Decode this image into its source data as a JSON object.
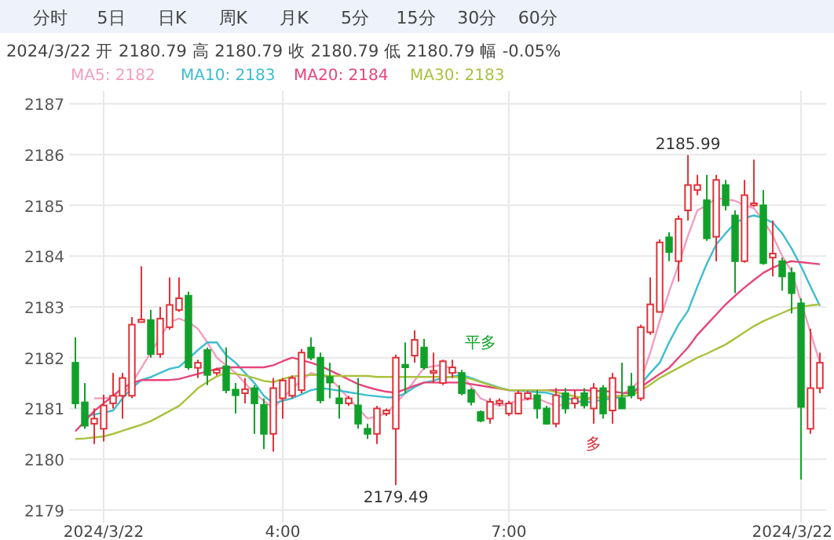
{
  "chart_data": {
    "type": "candlestick",
    "subtitle": "2024/3/22  开 2180.79  高 2180.79  收 2180.79  低 2180.79  幅 -0.05%",
    "annotations": [
      "分时",
      "5日",
      "日K",
      "周K",
      "月K",
      "5分",
      "15分",
      "30分",
      "60分",
      "平多",
      "多",
      {
        "text": "2185.99",
        "y": 2185.99
      },
      {
        "text": "2179.49",
        "y": 2179.49
      }
    ],
    "categories": [
      null,
      null,
      null,
      "2024/3/22",
      null,
      null,
      null,
      null,
      null,
      null,
      null,
      null,
      null,
      null,
      null,
      null,
      null,
      null,
      null,
      null,
      null,
      null,
      "4:00",
      null,
      null,
      null,
      null,
      null,
      null,
      null,
      null,
      null,
      null,
      null,
      null,
      null,
      null,
      null,
      null,
      null,
      null,
      null,
      null,
      null,
      null,
      null,
      "7:00",
      null,
      null,
      null,
      null,
      null,
      null,
      null,
      null,
      null,
      null,
      null,
      null,
      null,
      null,
      null,
      null,
      null,
      null,
      null,
      null,
      null,
      null,
      null,
      null,
      null,
      null,
      null,
      null,
      null,
      null,
      "2024/3/22",
      null,
      null
    ],
    "ohlc": [
      [
        2181.9,
        2182.4,
        2181.0,
        2181.1
      ],
      [
        2181.12,
        2181.5,
        2180.6,
        2180.66
      ],
      [
        2180.7,
        2181.0,
        2180.3,
        2180.8
      ],
      [
        2180.6,
        2181.27,
        2180.35,
        2181.06
      ],
      [
        2181.1,
        2181.7,
        2181.0,
        2181.25
      ],
      [
        2181.25,
        2181.7,
        2180.8,
        2181.6
      ],
      [
        2181.25,
        2182.8,
        2181.2,
        2182.65
      ],
      [
        2182.7,
        2183.8,
        2182.7,
        2182.75
      ],
      [
        2182.74,
        2182.94,
        2182.0,
        2182.07
      ],
      [
        2182.07,
        2183.0,
        2182.0,
        2182.77
      ],
      [
        2182.6,
        2183.58,
        2182.55,
        2183.04
      ],
      [
        2182.94,
        2183.58,
        2182.9,
        2183.17
      ],
      [
        2183.22,
        2183.3,
        2181.76,
        2181.81
      ],
      [
        2181.8,
        2181.96,
        2181.6,
        2181.9
      ],
      [
        2182.15,
        2182.2,
        2181.46,
        2181.66
      ],
      [
        2181.7,
        2181.8,
        2181.65,
        2181.76
      ],
      [
        2181.83,
        2182.2,
        2181.3,
        2181.36
      ],
      [
        2181.37,
        2181.5,
        2180.9,
        2181.26
      ],
      [
        2181.3,
        2181.6,
        2181.1,
        2181.38
      ],
      [
        2181.4,
        2181.46,
        2180.5,
        2181.1
      ],
      [
        2181.07,
        2181.2,
        2180.2,
        2180.5
      ],
      [
        2180.5,
        2181.6,
        2180.15,
        2181.4
      ],
      [
        2181.2,
        2181.6,
        2180.8,
        2181.55
      ],
      [
        2181.25,
        2181.65,
        2181.2,
        2181.6
      ],
      [
        2181.36,
        2182.17,
        2181.3,
        2182.1
      ],
      [
        2182.2,
        2182.4,
        2181.95,
        2182.0
      ],
      [
        2182.0,
        2182.1,
        2181.1,
        2181.16
      ],
      [
        2181.62,
        2181.9,
        2181.2,
        2181.51
      ],
      [
        2181.2,
        2181.46,
        2180.8,
        2181.1
      ],
      [
        2181.1,
        2181.25,
        2181.05,
        2181.2
      ],
      [
        2181.06,
        2181.6,
        2180.6,
        2180.7
      ],
      [
        2180.6,
        2180.7,
        2180.4,
        2180.5
      ],
      [
        2180.5,
        2181.05,
        2180.3,
        2181.0
      ],
      [
        2180.9,
        2181.0,
        2180.85,
        2180.96
      ],
      [
        2180.6,
        2182.06,
        2179.49,
        2182.0
      ],
      [
        2181.86,
        2182.3,
        2181.3,
        2181.81
      ],
      [
        2182.04,
        2182.54,
        2181.9,
        2182.35
      ],
      [
        2182.2,
        2182.37,
        2181.76,
        2181.81
      ],
      [
        2181.7,
        2182.1,
        2181.5,
        2181.74
      ],
      [
        2181.5,
        2181.96,
        2181.46,
        2181.93
      ],
      [
        2181.7,
        2181.96,
        2181.6,
        2181.81
      ],
      [
        2181.7,
        2181.76,
        2181.26,
        2181.3
      ],
      [
        2181.36,
        2181.4,
        2181.06,
        2181.13
      ],
      [
        2180.93,
        2180.96,
        2180.73,
        2180.76
      ],
      [
        2180.8,
        2181.2,
        2180.7,
        2181.13
      ],
      [
        2181.1,
        2181.2,
        2181.05,
        2181.15
      ],
      [
        2180.9,
        2181.15,
        2180.85,
        2181.1
      ],
      [
        2180.9,
        2181.35,
        2180.88,
        2181.3
      ],
      [
        2181.2,
        2181.35,
        2181.16,
        2181.3
      ],
      [
        2181.26,
        2181.36,
        2180.8,
        2181.0
      ],
      [
        2181.0,
        2181.05,
        2180.68,
        2180.7
      ],
      [
        2180.7,
        2181.4,
        2180.63,
        2181.26
      ],
      [
        2181.3,
        2181.4,
        2180.9,
        2181.0
      ],
      [
        2181.1,
        2181.36,
        2181.0,
        2181.2
      ],
      [
        2181.3,
        2181.4,
        2181.0,
        2181.06
      ],
      [
        2181.0,
        2181.5,
        2180.7,
        2181.4
      ],
      [
        2181.4,
        2181.46,
        2180.8,
        2180.9
      ],
      [
        2180.96,
        2181.7,
        2180.7,
        2181.6
      ],
      [
        2181.2,
        2181.9,
        2181.0,
        2181.0
      ],
      [
        2181.43,
        2181.7,
        2181.2,
        2181.26
      ],
      [
        2181.2,
        2182.65,
        2181.15,
        2182.6
      ],
      [
        2182.5,
        2183.58,
        2182.45,
        2183.05
      ],
      [
        2182.9,
        2184.33,
        2182.9,
        2184.27
      ],
      [
        2184.37,
        2184.47,
        2183.9,
        2184.08
      ],
      [
        2183.9,
        2184.8,
        2183.5,
        2184.73
      ],
      [
        2184.9,
        2185.99,
        2184.7,
        2185.4
      ],
      [
        2185.3,
        2185.6,
        2185.2,
        2185.4
      ],
      [
        2185.1,
        2185.6,
        2184.3,
        2184.35
      ],
      [
        2184.38,
        2185.6,
        2183.9,
        2185.5
      ],
      [
        2185.4,
        2185.5,
        2184.9,
        2185.0
      ],
      [
        2184.8,
        2184.9,
        2183.27,
        2183.9
      ],
      [
        2183.9,
        2185.5,
        2183.87,
        2185.2
      ],
      [
        2185.0,
        2185.9,
        2184.97,
        2185.04
      ],
      [
        2185.0,
        2185.3,
        2183.83,
        2183.86
      ],
      [
        2183.97,
        2184.7,
        2183.6,
        2184.05
      ],
      [
        2183.9,
        2183.97,
        2183.32,
        2183.6
      ],
      [
        2183.67,
        2183.78,
        2182.87,
        2183.27
      ],
      [
        2183.07,
        2183.17,
        2179.6,
        2181.03
      ],
      [
        2180.6,
        2182.57,
        2180.5,
        2181.4
      ],
      [
        2181.4,
        2182.1,
        2181.3,
        2181.9
      ]
    ],
    "series": [
      {
        "name": "MA5: 2182",
        "type": "line",
        "color": "#f29ec0",
        "values": [
          null,
          null,
          2181.2,
          2181.2,
          2181.22,
          2181.26,
          2181.5,
          2181.8,
          2182.1,
          2182.4,
          2182.7,
          2182.77,
          2182.7,
          2182.57,
          2182.3,
          2182.0,
          2181.85,
          2181.7,
          2181.5,
          2181.3,
          2181.15,
          2181.0,
          2181.2,
          2181.4,
          2181.55,
          2181.7,
          2181.65,
          2181.6,
          2181.4,
          2181.2,
          2181.0,
          2180.8,
          2180.85,
          2180.9,
          2181.1,
          2181.3,
          2181.55,
          2181.8,
          2181.83,
          2181.86,
          2181.76,
          2181.66,
          2181.43,
          2181.2,
          2181.12,
          2181.05,
          2181.1,
          2181.16,
          2181.18,
          2181.2,
          2181.12,
          2181.05,
          2181.08,
          2181.12,
          2181.16,
          2181.2,
          2181.22,
          2181.24,
          2181.26,
          2181.4,
          2181.56,
          2182.1,
          2182.72,
          2183.3,
          2183.83,
          2184.4,
          2184.9,
          2185.0,
          2185.14,
          2185.12,
          2185.09,
          2185.0,
          2184.94,
          2184.7,
          2184.4,
          2184.0,
          2183.7,
          2183.1,
          2182.5,
          2181.9
        ]
      },
      {
        "name": "MA10: 2183",
        "type": "line",
        "color": "#3dbdd0",
        "values": [
          null,
          2180.85,
          2180.88,
          2180.92,
          2180.96,
          2181.2,
          2181.4,
          2181.56,
          2181.62,
          2181.7,
          2181.78,
          2181.82,
          2181.98,
          2182.15,
          2182.3,
          2182.3,
          2182.05,
          2181.9,
          2181.7,
          2181.5,
          2181.25,
          2181.1,
          2181.15,
          2181.2,
          2181.28,
          2181.36,
          2181.4,
          2181.38,
          2181.35,
          2181.32,
          2181.29,
          2181.26,
          2181.24,
          2181.22,
          2181.22,
          2181.3,
          2181.42,
          2181.51,
          2181.55,
          2181.6,
          2181.63,
          2181.66,
          2181.6,
          2181.53,
          2181.47,
          2181.41,
          2181.36,
          2181.35,
          2181.34,
          2181.32,
          2181.31,
          2181.26,
          2181.21,
          2181.16,
          2181.11,
          2181.14,
          2181.17,
          2181.2,
          2181.23,
          2181.26,
          2181.48,
          2181.7,
          2181.9,
          2182.3,
          2182.65,
          2182.92,
          2183.4,
          2183.85,
          2184.23,
          2184.45,
          2184.65,
          2184.75,
          2184.8,
          2184.75,
          2184.66,
          2184.45,
          2184.15,
          2183.8,
          2183.4,
          2183.02
        ]
      },
      {
        "name": "MA20: 2184",
        "type": "line",
        "color": "#e6457a",
        "values": [
          2180.55,
          2180.75,
          2180.95,
          2181.1,
          2181.25,
          2181.4,
          2181.5,
          2181.56,
          2181.56,
          2181.56,
          2181.56,
          2181.58,
          2181.63,
          2181.68,
          2181.73,
          2181.78,
          2181.81,
          2181.81,
          2181.81,
          2181.81,
          2181.81,
          2181.85,
          2181.93,
          2182.0,
          2181.95,
          2181.9,
          2181.84,
          2181.75,
          2181.66,
          2181.57,
          2181.48,
          2181.42,
          2181.37,
          2181.33,
          2181.31,
          2181.38,
          2181.45,
          2181.51,
          2181.51,
          2181.51,
          2181.51,
          2181.51,
          2181.48,
          2181.45,
          2181.42,
          2181.39,
          2181.36,
          2181.36,
          2181.36,
          2181.36,
          2181.36,
          2181.36,
          2181.36,
          2181.36,
          2181.36,
          2181.35,
          2181.34,
          2181.33,
          2181.31,
          2181.3,
          2181.42,
          2181.55,
          2181.68,
          2181.8,
          2182.0,
          2182.2,
          2182.45,
          2182.65,
          2182.85,
          2183.05,
          2183.22,
          2183.38,
          2183.53,
          2183.67,
          2183.77,
          2183.85,
          2183.9,
          2183.88,
          2183.86,
          2183.84
        ]
      },
      {
        "name": "MA30: 2183",
        "type": "line",
        "color": "#a9c23f",
        "values": [
          2180.4,
          2180.41,
          2180.43,
          2180.45,
          2180.5,
          2180.56,
          2180.62,
          2180.68,
          2180.75,
          2180.85,
          2180.95,
          2181.05,
          2181.22,
          2181.4,
          2181.52,
          2181.63,
          2181.7,
          2181.68,
          2181.65,
          2181.6,
          2181.54,
          2181.52,
          2181.58,
          2181.63,
          2181.65,
          2181.66,
          2181.66,
          2181.64,
          2181.64,
          2181.64,
          2181.64,
          2181.64,
          2181.62,
          2181.62,
          2181.62,
          2181.62,
          2181.62,
          2181.62,
          2181.62,
          2181.62,
          2181.62,
          2181.62,
          2181.58,
          2181.52,
          2181.46,
          2181.4,
          2181.36,
          2181.36,
          2181.36,
          2181.36,
          2181.36,
          2181.32,
          2181.28,
          2181.24,
          2181.2,
          2181.21,
          2181.22,
          2181.23,
          2181.25,
          2181.26,
          2181.35,
          2181.47,
          2181.6,
          2181.7,
          2181.8,
          2181.9,
          2182.0,
          2182.08,
          2182.17,
          2182.26,
          2182.38,
          2182.5,
          2182.62,
          2182.72,
          2182.8,
          2182.88,
          2182.96,
          2183.0,
          2183.03,
          2183.05
        ]
      }
    ],
    "ylim": [
      2178.75,
      2187.25
    ],
    "yticks": [
      2179,
      2180,
      2181,
      2182,
      2183,
      2184,
      2185,
      2186,
      2187
    ],
    "grid": true,
    "legend": "top left"
  }
}
